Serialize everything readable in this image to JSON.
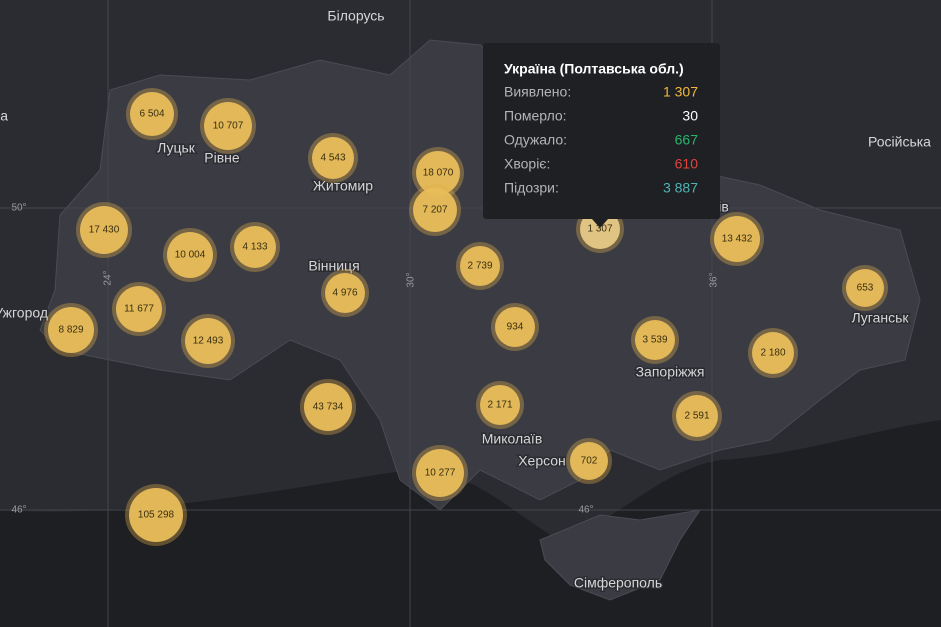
{
  "places": [
    "Білорусь",
    "Польща",
    "Луцьк",
    "Рівне",
    "Житомир",
    "Вінниця",
    "Ужгород",
    "Харків",
    "Запоріжжя",
    "Луганськ",
    "Миколаїв",
    "Херсон",
    "Сімферополь",
    "Російська"
  ],
  "grid_labels": [
    "50°",
    "46°",
    "24°",
    "30°",
    "36°",
    "46°"
  ],
  "clusters": [
    "6 504",
    "10 707",
    "4 543",
    "18 070",
    "7 207",
    "17 430",
    "10 004",
    "4 133",
    "2 739",
    "1 307",
    "13 432",
    "653",
    "4 976",
    "11 677",
    "8 829",
    "12 493",
    "934",
    "3 539",
    "2 180",
    "43 734",
    "2 171",
    "2 591",
    "702",
    "10 277",
    "105 298"
  ],
  "tooltip": {
    "title": "Україна (Полтавська обл.)",
    "rows": [
      {
        "label": "Виявлено:",
        "value": "1 307"
      },
      {
        "label": "Померло:",
        "value": "30"
      },
      {
        "label": "Одужало:",
        "value": "667"
      },
      {
        "label": "Хворіє:",
        "value": "610"
      },
      {
        "label": "Підозри:",
        "value": "3 887"
      }
    ]
  }
}
